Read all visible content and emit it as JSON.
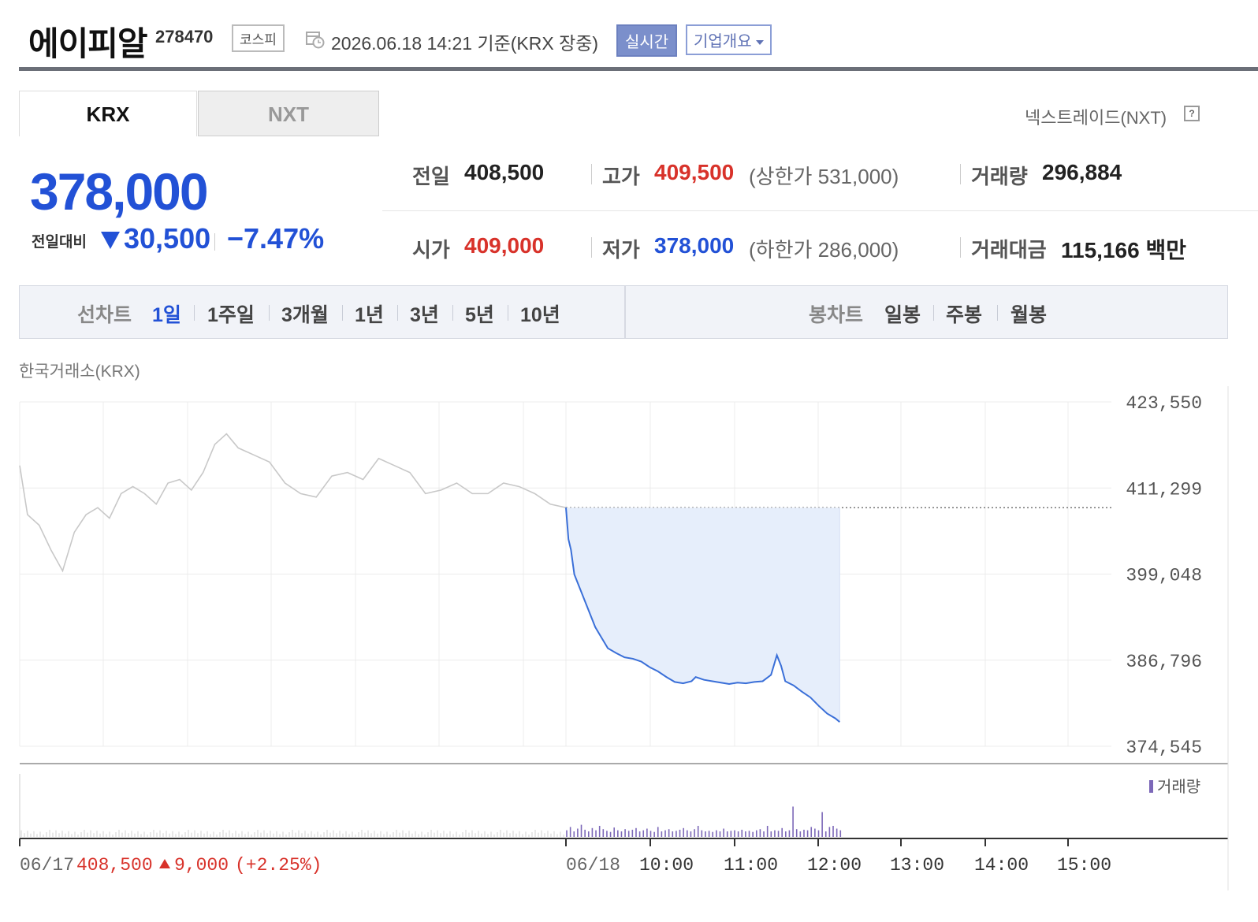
{
  "header": {
    "company_name": "에이피알",
    "stock_code": "278470",
    "market": "코스피",
    "timestamp": "2026.06.18 14:21  기준(KRX 장중)",
    "realtime_label": "실시간",
    "company_info_label": "기업개요"
  },
  "tabs": [
    {
      "label": "KRX",
      "active": true
    },
    {
      "label": "NXT",
      "active": false
    }
  ],
  "nxt_link": "넥스트레이드(NXT)",
  "price": {
    "current": "378,000",
    "change_label": "전일대비",
    "change_value": "30,500",
    "change_percent": "−7.47%",
    "direction": "down"
  },
  "stats": {
    "prev_close": {
      "label": "전일",
      "value": "408,500"
    },
    "high": {
      "label": "고가",
      "value": "409,500",
      "limit_text": "(상한가 531,000)"
    },
    "volume": {
      "label": "거래량",
      "value": "296,884"
    },
    "open": {
      "label": "시가",
      "value": "409,000"
    },
    "low": {
      "label": "저가",
      "value": "378,000",
      "limit_text": "(하한가 286,000)"
    },
    "trade_value": {
      "label": "거래대금",
      "value": "115,166 백만"
    }
  },
  "line_chart": {
    "label": "선차트",
    "periods": [
      "1일",
      "1주일",
      "3개월",
      "1년",
      "3년",
      "5년",
      "10년"
    ],
    "active": "1일"
  },
  "candle_chart": {
    "label": "봉차트",
    "periods": [
      "일봉",
      "주봉",
      "월봉"
    ]
  },
  "exchange_label": "한국거래소(KRX)",
  "colors": {
    "up": "#d8322a",
    "down": "#2251d6",
    "today_line": "#3a6fd8",
    "today_fill": "#e6eefb",
    "prev_line": "#c8c8c8",
    "volume": "#7c68b8"
  },
  "chart_data": {
    "type": "line",
    "y_ticks": [
      "423,550",
      "411,299",
      "399,048",
      "386,796",
      "374,545"
    ],
    "ylim": [
      374545,
      423550
    ],
    "x_ticks": [
      "06/18",
      "10:00",
      "11:00",
      "12:00",
      "13:00",
      "14:00",
      "15:00"
    ],
    "prev_day_label": "06/17",
    "prev_day_summary": {
      "close": "408,500",
      "change": "9,000",
      "percent": "(+2.25%)"
    },
    "reference_price": 408500,
    "volume_legend": "거래량",
    "grid": true,
    "prev_day_series": {
      "name": "",
      "points": [
        [
          0,
          414500
        ],
        [
          0.02,
          407500
        ],
        [
          0.05,
          406000
        ],
        [
          0.08,
          402500
        ],
        [
          0.11,
          399500
        ],
        [
          0.14,
          405000
        ],
        [
          0.17,
          407500
        ],
        [
          0.2,
          408500
        ],
        [
          0.23,
          407000
        ],
        [
          0.26,
          410500
        ],
        [
          0.29,
          411500
        ],
        [
          0.32,
          410500
        ],
        [
          0.35,
          409000
        ],
        [
          0.38,
          412000
        ],
        [
          0.41,
          412500
        ],
        [
          0.44,
          411000
        ],
        [
          0.47,
          413500
        ],
        [
          0.5,
          417500
        ],
        [
          0.53,
          419000
        ],
        [
          0.56,
          417000
        ],
        [
          0.6,
          416000
        ],
        [
          0.64,
          415000
        ],
        [
          0.68,
          412000
        ],
        [
          0.72,
          410500
        ],
        [
          0.76,
          410000
        ],
        [
          0.8,
          413000
        ],
        [
          0.84,
          413500
        ],
        [
          0.88,
          412500
        ],
        [
          0.92,
          415500
        ],
        [
          0.96,
          414500
        ],
        [
          1.0,
          413500
        ],
        [
          1.04,
          410500
        ],
        [
          1.08,
          411000
        ],
        [
          1.12,
          412000
        ],
        [
          1.16,
          410500
        ],
        [
          1.2,
          410500
        ],
        [
          1.24,
          412000
        ],
        [
          1.28,
          411500
        ],
        [
          1.32,
          410500
        ],
        [
          1.36,
          409000
        ],
        [
          1.4,
          408500
        ]
      ]
    },
    "today_series": {
      "name": "",
      "points": [
        [
          0,
          408500
        ],
        [
          0.03,
          404000
        ],
        [
          0.06,
          402500
        ],
        [
          0.1,
          399000
        ],
        [
          0.15,
          397500
        ],
        [
          0.2,
          396000
        ],
        [
          0.25,
          394500
        ],
        [
          0.3,
          393000
        ],
        [
          0.35,
          391500
        ],
        [
          0.4,
          390500
        ],
        [
          0.45,
          389500
        ],
        [
          0.5,
          388500
        ],
        [
          0.6,
          387800
        ],
        [
          0.7,
          387200
        ],
        [
          0.8,
          387000
        ],
        [
          0.9,
          386600
        ],
        [
          1.0,
          385800
        ],
        [
          1.1,
          385200
        ],
        [
          1.2,
          384400
        ],
        [
          1.3,
          383700
        ],
        [
          1.4,
          383500
        ],
        [
          1.5,
          383800
        ],
        [
          1.55,
          384400
        ],
        [
          1.65,
          384000
        ],
        [
          1.75,
          383800
        ],
        [
          1.85,
          383600
        ],
        [
          1.95,
          383400
        ],
        [
          2.05,
          383600
        ],
        [
          2.15,
          383500
        ],
        [
          2.25,
          383700
        ],
        [
          2.35,
          383800
        ],
        [
          2.45,
          384700
        ],
        [
          2.52,
          387500
        ],
        [
          2.57,
          386000
        ],
        [
          2.62,
          383800
        ],
        [
          2.72,
          383200
        ],
        [
          2.82,
          382300
        ],
        [
          2.92,
          381500
        ],
        [
          3.02,
          380300
        ],
        [
          3.12,
          379200
        ],
        [
          3.22,
          378500
        ],
        [
          3.27,
          378000
        ]
      ]
    },
    "today_volume": [
      0.12,
      0.18,
      0.1,
      0.15,
      0.22,
      0.13,
      0.1,
      0.16,
      0.12,
      0.2,
      0.14,
      0.11,
      0.09,
      0.17,
      0.12,
      0.1,
      0.14,
      0.11,
      0.13,
      0.16,
      0.1,
      0.12,
      0.15,
      0.11,
      0.09,
      0.18,
      0.1,
      0.12,
      0.14,
      0.1,
      0.11,
      0.13,
      0.16,
      0.12,
      0.1,
      0.14,
      0.2,
      0.12,
      0.1,
      0.11,
      0.09,
      0.12,
      0.1,
      0.15,
      0.1,
      0.11,
      0.12,
      0.1,
      0.13,
      0.1,
      0.11,
      0.09,
      0.12,
      0.14,
      0.1,
      0.2,
      0.1,
      0.12,
      0.11,
      0.16,
      0.1,
      0.12,
      0.55,
      0.14,
      0.1,
      0.13,
      0.12,
      0.18,
      0.15,
      0.12,
      0.45,
      0.1,
      0.18,
      0.2,
      0.15,
      0.12
    ]
  }
}
